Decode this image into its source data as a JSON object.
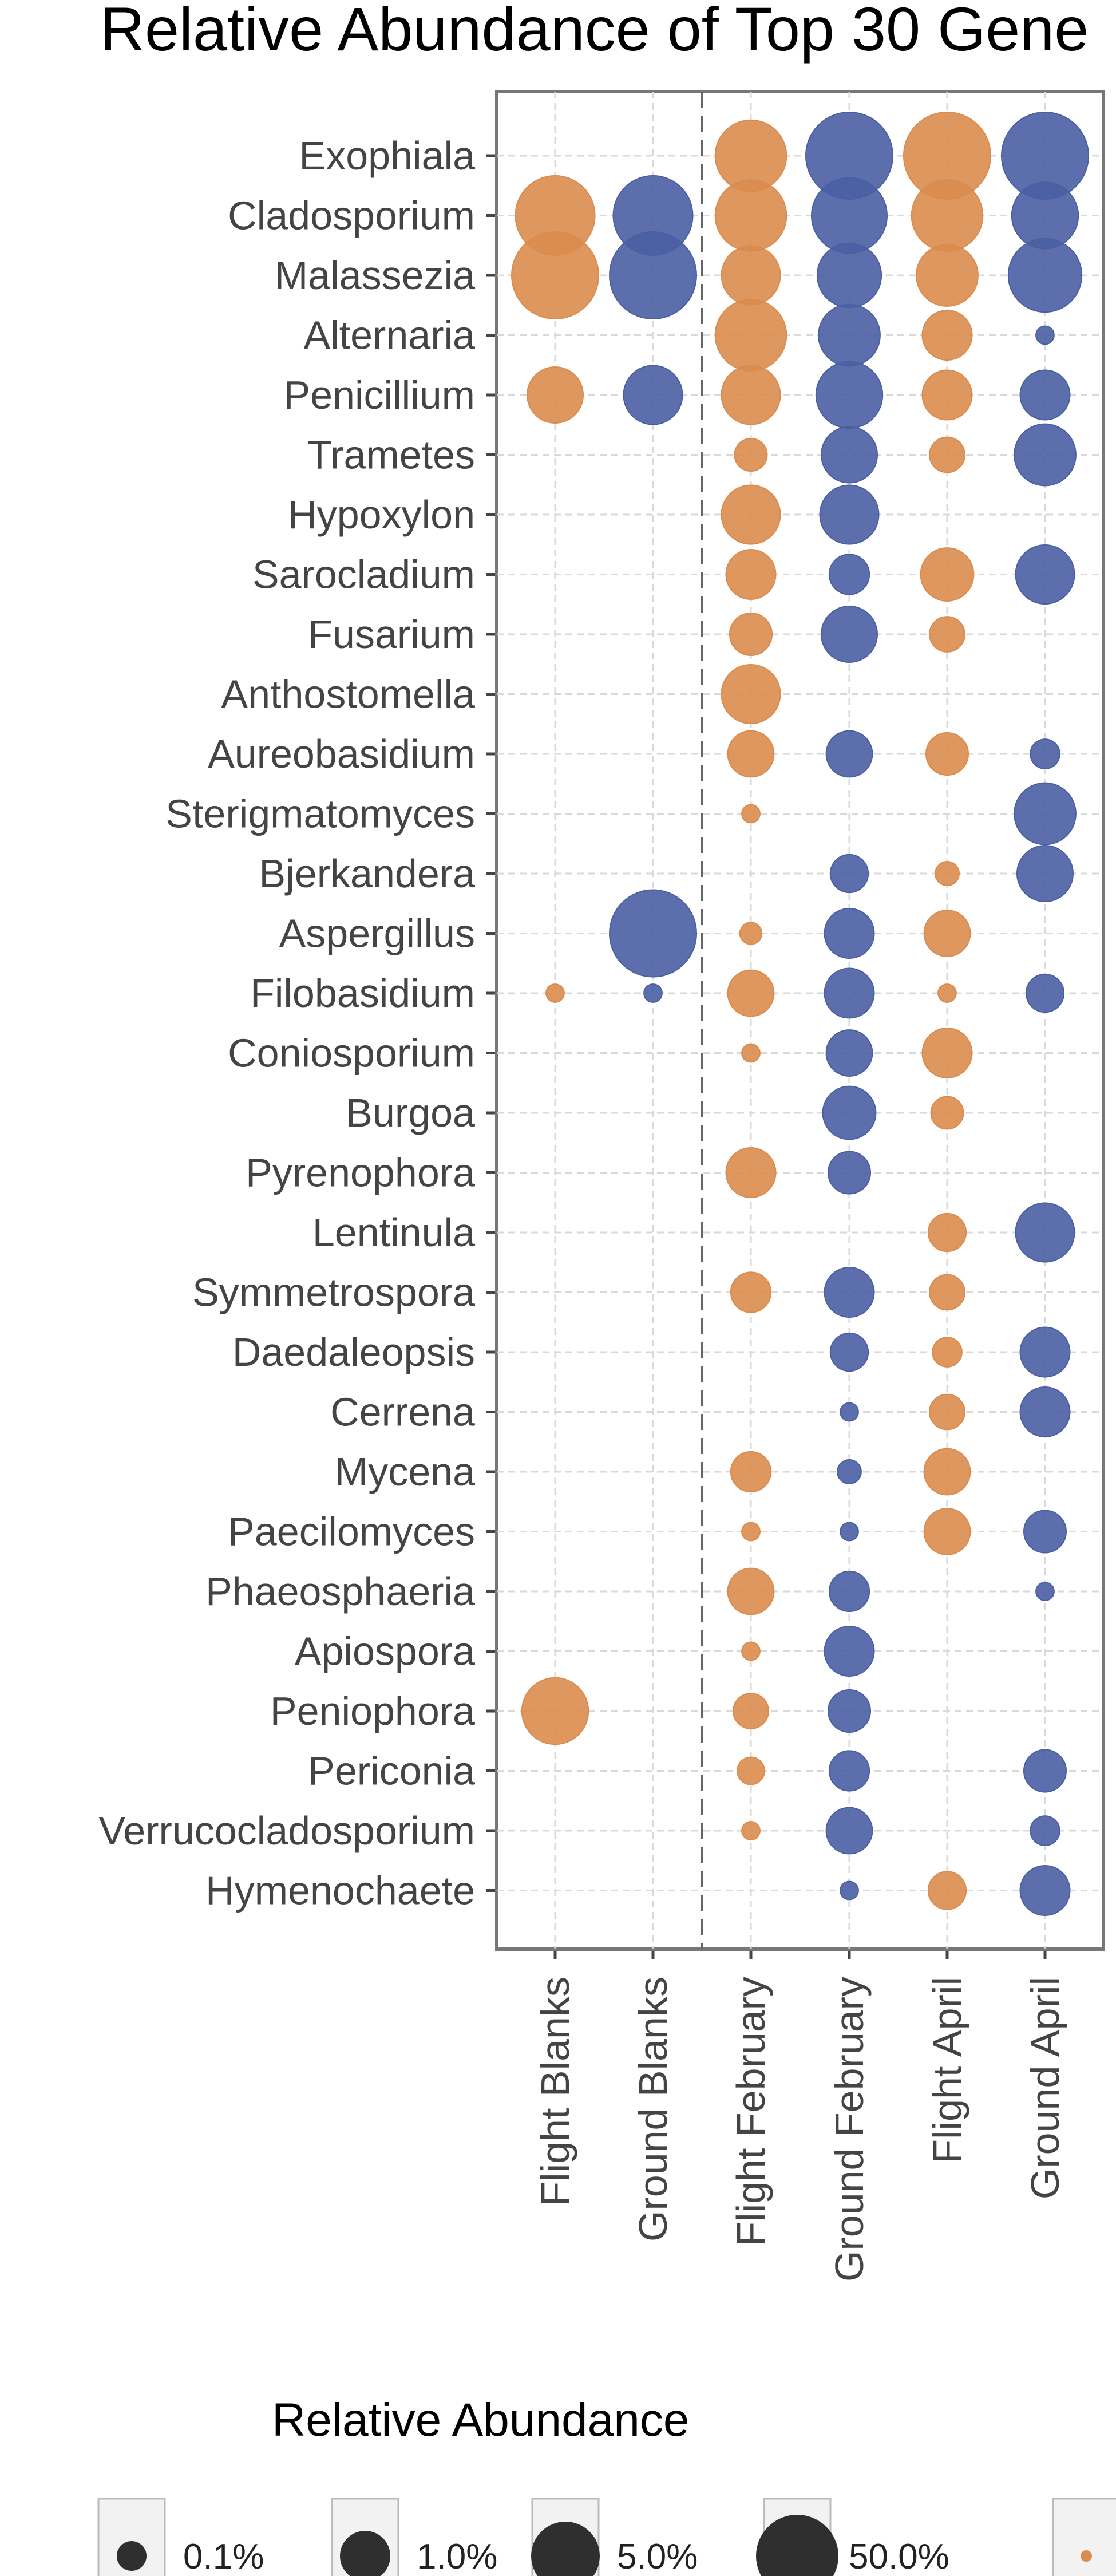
{
  "chart_data": {
    "type": "scatter",
    "title": "Relative Abundance of Top 30 Gene",
    "xlabel": "",
    "ylabel": "",
    "categories": [
      "Flight Blanks",
      "Ground Blanks",
      "Flight February",
      "Ground February",
      "Flight April",
      "Ground April"
    ],
    "genera": [
      "Exophiala",
      "Cladosporium",
      "Malassezia",
      "Alternaria",
      "Penicillium",
      "Trametes",
      "Hypoxylon",
      "Sarocladium",
      "Fusarium",
      "Anthostomella",
      "Aureobasidium",
      "Sterigmatomyces",
      "Bjerkandera",
      "Aspergillus",
      "Filobasidium",
      "Coniosporium",
      "Burgoa",
      "Pyrenophora",
      "Lentinula",
      "Symmetrospora",
      "Daedaleopsis",
      "Cerrena",
      "Mycena",
      "Paecilomyces",
      "Phaeosphaeria",
      "Apiospora",
      "Peniophora",
      "Periconia",
      "Verrucocladosporium",
      "Hymenochaete"
    ],
    "colors": {
      "flight": "#d98c4e",
      "ground": "#4a5fa3"
    },
    "divider_after_category": "Ground Blanks",
    "grid": true,
    "size_legend": {
      "title": "Relative Abundance",
      "entries": [
        {
          "label": "0.1%",
          "value": 0.1
        },
        {
          "label": "1.0%",
          "value": 1.0
        },
        {
          "label": "5.0%",
          "value": 5.0
        },
        {
          "label": "50.0%",
          "value": 50.0
        }
      ]
    },
    "points": [
      {
        "genus": "Exophiala",
        "category": "Flight February",
        "value": 14
      },
      {
        "genus": "Exophiala",
        "category": "Ground February",
        "value": 22
      },
      {
        "genus": "Exophiala",
        "category": "Flight April",
        "value": 22
      },
      {
        "genus": "Exophiala",
        "category": "Ground April",
        "value": 22
      },
      {
        "genus": "Cladosporium",
        "category": "Flight Blanks",
        "value": 18
      },
      {
        "genus": "Cladosporium",
        "category": "Ground Blanks",
        "value": 18
      },
      {
        "genus": "Cladosporium",
        "category": "Flight February",
        "value": 14
      },
      {
        "genus": "Cladosporium",
        "category": "Ground February",
        "value": 16
      },
      {
        "genus": "Cladosporium",
        "category": "Flight April",
        "value": 14
      },
      {
        "genus": "Cladosporium",
        "category": "Ground April",
        "value": 12
      },
      {
        "genus": "Malassezia",
        "category": "Flight Blanks",
        "value": 22
      },
      {
        "genus": "Malassezia",
        "category": "Ground Blanks",
        "value": 22
      },
      {
        "genus": "Malassezia",
        "category": "Flight February",
        "value": 9
      },
      {
        "genus": "Malassezia",
        "category": "Ground February",
        "value": 11
      },
      {
        "genus": "Malassezia",
        "category": "Flight April",
        "value": 10
      },
      {
        "genus": "Malassezia",
        "category": "Ground April",
        "value": 15
      },
      {
        "genus": "Alternaria",
        "category": "Flight February",
        "value": 14
      },
      {
        "genus": "Alternaria",
        "category": "Ground February",
        "value": 10
      },
      {
        "genus": "Alternaria",
        "category": "Flight April",
        "value": 6
      },
      {
        "genus": "Alternaria",
        "category": "Ground April",
        "value": 0.3
      },
      {
        "genus": "Penicillium",
        "category": "Flight Blanks",
        "value": 8
      },
      {
        "genus": "Penicillium",
        "category": "Ground Blanks",
        "value": 9
      },
      {
        "genus": "Penicillium",
        "category": "Flight February",
        "value": 9
      },
      {
        "genus": "Penicillium",
        "category": "Ground February",
        "value": 12
      },
      {
        "genus": "Penicillium",
        "category": "Flight April",
        "value": 6
      },
      {
        "genus": "Penicillium",
        "category": "Ground April",
        "value": 6
      },
      {
        "genus": "Trametes",
        "category": "Flight February",
        "value": 2
      },
      {
        "genus": "Trametes",
        "category": "Ground February",
        "value": 8
      },
      {
        "genus": "Trametes",
        "category": "Flight April",
        "value": 2.5
      },
      {
        "genus": "Trametes",
        "category": "Ground April",
        "value": 10
      },
      {
        "genus": "Hypoxylon",
        "category": "Flight February",
        "value": 9
      },
      {
        "genus": "Hypoxylon",
        "category": "Ground February",
        "value": 9
      },
      {
        "genus": "Sarocladium",
        "category": "Flight February",
        "value": 6
      },
      {
        "genus": "Sarocladium",
        "category": "Ground February",
        "value": 3.5
      },
      {
        "genus": "Sarocladium",
        "category": "Flight April",
        "value": 7
      },
      {
        "genus": "Sarocladium",
        "category": "Ground April",
        "value": 9
      },
      {
        "genus": "Fusarium",
        "category": "Flight February",
        "value": 4
      },
      {
        "genus": "Fusarium",
        "category": "Ground February",
        "value": 8
      },
      {
        "genus": "Fusarium",
        "category": "Flight April",
        "value": 2.5
      },
      {
        "genus": "Anthostomella",
        "category": "Flight February",
        "value": 9
      },
      {
        "genus": "Aureobasidium",
        "category": "Flight February",
        "value": 5
      },
      {
        "genus": "Aureobasidium",
        "category": "Ground February",
        "value": 5
      },
      {
        "genus": "Aureobasidium",
        "category": "Flight April",
        "value": 4
      },
      {
        "genus": "Aureobasidium",
        "category": "Ground April",
        "value": 1.5
      },
      {
        "genus": "Sterigmatomyces",
        "category": "Flight February",
        "value": 0.3
      },
      {
        "genus": "Sterigmatomyces",
        "category": "Ground April",
        "value": 10
      },
      {
        "genus": "Bjerkandera",
        "category": "Ground February",
        "value": 3
      },
      {
        "genus": "Bjerkandera",
        "category": "Flight April",
        "value": 0.8
      },
      {
        "genus": "Bjerkandera",
        "category": "Ground April",
        "value": 8
      },
      {
        "genus": "Aspergillus",
        "category": "Ground Blanks",
        "value": 22
      },
      {
        "genus": "Aspergillus",
        "category": "Flight February",
        "value": 0.6
      },
      {
        "genus": "Aspergillus",
        "category": "Ground February",
        "value": 6
      },
      {
        "genus": "Aspergillus",
        "category": "Flight April",
        "value": 5
      },
      {
        "genus": "Filobasidium",
        "category": "Flight Blanks",
        "value": 0.3
      },
      {
        "genus": "Filobasidium",
        "category": "Ground Blanks",
        "value": 0.3
      },
      {
        "genus": "Filobasidium",
        "category": "Flight February",
        "value": 5
      },
      {
        "genus": "Filobasidium",
        "category": "Ground February",
        "value": 6
      },
      {
        "genus": "Filobasidium",
        "category": "Flight April",
        "value": 0.3
      },
      {
        "genus": "Filobasidium",
        "category": "Ground April",
        "value": 3
      },
      {
        "genus": "Coniosporium",
        "category": "Flight February",
        "value": 0.3
      },
      {
        "genus": "Coniosporium",
        "category": "Ground February",
        "value": 5
      },
      {
        "genus": "Coniosporium",
        "category": "Flight April",
        "value": 6
      },
      {
        "genus": "Burgoa",
        "category": "Ground February",
        "value": 7
      },
      {
        "genus": "Burgoa",
        "category": "Flight April",
        "value": 2
      },
      {
        "genus": "Pyrenophora",
        "category": "Flight February",
        "value": 6
      },
      {
        "genus": "Pyrenophora",
        "category": "Ground February",
        "value": 4
      },
      {
        "genus": "Lentinula",
        "category": "Flight April",
        "value": 3
      },
      {
        "genus": "Lentinula",
        "category": "Ground April",
        "value": 9
      },
      {
        "genus": "Symmetrospora",
        "category": "Flight February",
        "value": 3.5
      },
      {
        "genus": "Symmetrospora",
        "category": "Ground February",
        "value": 6
      },
      {
        "genus": "Symmetrospora",
        "category": "Flight April",
        "value": 2.5
      },
      {
        "genus": "Daedaleopsis",
        "category": "Ground February",
        "value": 3
      },
      {
        "genus": "Daedaleopsis",
        "category": "Flight April",
        "value": 1.5
      },
      {
        "genus": "Daedaleopsis",
        "category": "Ground April",
        "value": 6
      },
      {
        "genus": "Cerrena",
        "category": "Ground February",
        "value": 0.3
      },
      {
        "genus": "Cerrena",
        "category": "Flight April",
        "value": 2.5
      },
      {
        "genus": "Cerrena",
        "category": "Ground April",
        "value": 6
      },
      {
        "genus": "Mycena",
        "category": "Flight February",
        "value": 3.5
      },
      {
        "genus": "Mycena",
        "category": "Ground February",
        "value": 0.8
      },
      {
        "genus": "Mycena",
        "category": "Flight April",
        "value": 5
      },
      {
        "genus": "Paecilomyces",
        "category": "Flight February",
        "value": 0.3
      },
      {
        "genus": "Paecilomyces",
        "category": "Ground February",
        "value": 0.3
      },
      {
        "genus": "Paecilomyces",
        "category": "Flight April",
        "value": 5
      },
      {
        "genus": "Paecilomyces",
        "category": "Ground April",
        "value": 4
      },
      {
        "genus": "Phaeosphaeria",
        "category": "Flight February",
        "value": 5
      },
      {
        "genus": "Phaeosphaeria",
        "category": "Ground February",
        "value": 3.5
      },
      {
        "genus": "Phaeosphaeria",
        "category": "Ground April",
        "value": 0.3
      },
      {
        "genus": "Apiospora",
        "category": "Flight February",
        "value": 0.3
      },
      {
        "genus": "Apiospora",
        "category": "Ground February",
        "value": 6
      },
      {
        "genus": "Peniophora",
        "category": "Flight Blanks",
        "value": 12
      },
      {
        "genus": "Peniophora",
        "category": "Flight February",
        "value": 2.5
      },
      {
        "genus": "Peniophora",
        "category": "Ground February",
        "value": 4
      },
      {
        "genus": "Periconia",
        "category": "Flight February",
        "value": 1.2
      },
      {
        "genus": "Periconia",
        "category": "Ground February",
        "value": 3.5
      },
      {
        "genus": "Periconia",
        "category": "Ground April",
        "value": 4
      },
      {
        "genus": "Verrucocladosporium",
        "category": "Flight February",
        "value": 0.3
      },
      {
        "genus": "Verrucocladosporium",
        "category": "Ground February",
        "value": 5
      },
      {
        "genus": "Verrucocladosporium",
        "category": "Ground April",
        "value": 1.5
      },
      {
        "genus": "Hymenochaete",
        "category": "Ground February",
        "value": 0.3
      },
      {
        "genus": "Hymenochaete",
        "category": "Flight April",
        "value": 3
      },
      {
        "genus": "Hymenochaete",
        "category": "Ground April",
        "value": 6
      }
    ]
  }
}
